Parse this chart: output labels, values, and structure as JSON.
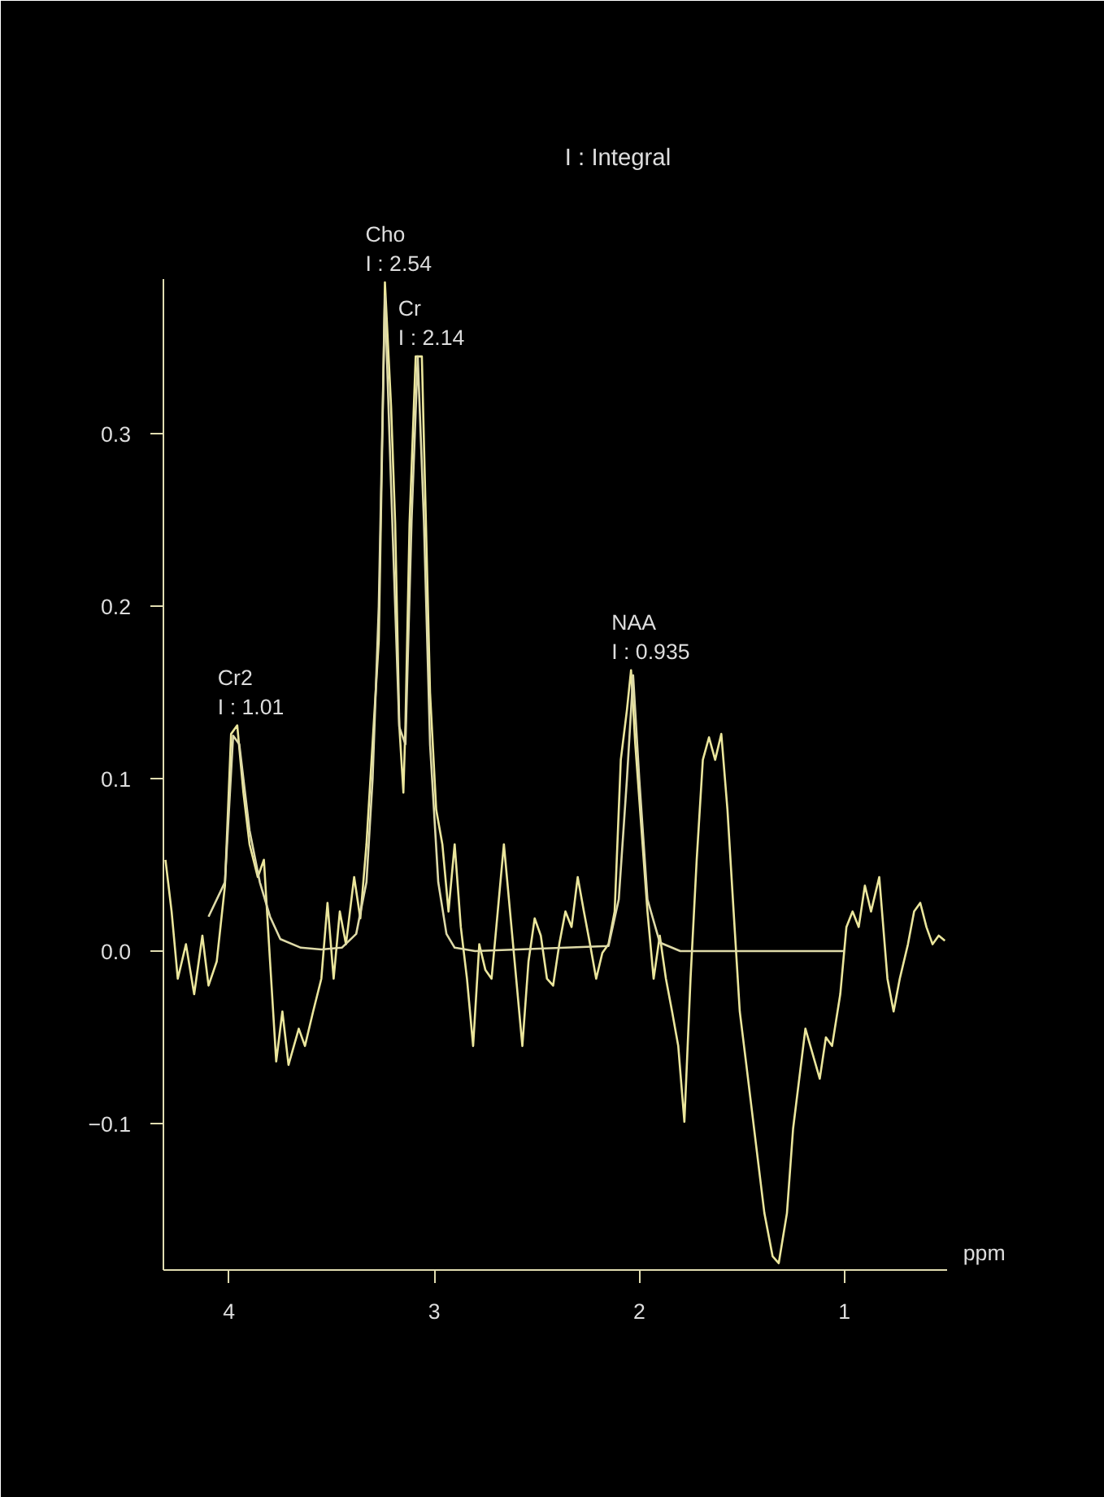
{
  "chart_data": {
    "type": "line",
    "title": "I : Integral",
    "xlabel": "ppm",
    "xlim": [
      4.32,
      0.5
    ],
    "xticks": [
      4,
      3,
      2,
      1
    ],
    "ylim": [
      -0.185,
      0.39
    ],
    "yticks": [
      -0.1,
      {
        "value": 0,
        "label": "0.0"
      },
      0.1,
      0.2,
      0.3
    ],
    "grid": false,
    "marker": "none",
    "line_style": "solid",
    "series": [
      {
        "color": "#ebe69c",
        "x": [
          4.31,
          4.28,
          4.25,
          4.21,
          4.17,
          4.13,
          4.1,
          4.06,
          4.02,
          3.99,
          3.96,
          3.93,
          3.9,
          3.86,
          3.83,
          3.8,
          3.77,
          3.74,
          3.71,
          3.66,
          3.63,
          3.59,
          3.55,
          3.52,
          3.49,
          3.46,
          3.43,
          3.39,
          3.36,
          3.33,
          3.3,
          3.27,
          3.25,
          3.24,
          3.21,
          3.19,
          3.17,
          3.15,
          3.14,
          3.12,
          3.09,
          3.06,
          3.04,
          3.02,
          2.99,
          2.96,
          2.93,
          2.9,
          2.87,
          2.84,
          2.81,
          2.78,
          2.75,
          2.72,
          2.69,
          2.66,
          2.63,
          2.6,
          2.57,
          2.54,
          2.51,
          2.48,
          2.45,
          2.42,
          2.39,
          2.36,
          2.33,
          2.3,
          2.27,
          2.24,
          2.21,
          2.18,
          2.15,
          2.12,
          2.09,
          2.06,
          2.04,
          2.02,
          1.99,
          1.96,
          1.93,
          1.9,
          1.87,
          1.84,
          1.81,
          1.78,
          1.75,
          1.72,
          1.69,
          1.66,
          1.63,
          1.6,
          1.57,
          1.54,
          1.51,
          1.48,
          1.43,
          1.39,
          1.35,
          1.32,
          1.28,
          1.25,
          1.22,
          1.19,
          1.12,
          1.09,
          1.06,
          1.02,
          0.99,
          0.96,
          0.93,
          0.9,
          0.87,
          0.83,
          0.79,
          0.76,
          0.73,
          0.69,
          0.66,
          0.63,
          0.6,
          0.57,
          0.54,
          0.51
        ],
        "values": [
          0.053,
          0.023,
          -0.016,
          0.004,
          -0.025,
          0.009,
          -0.02,
          -0.006,
          0.038,
          0.126,
          0.131,
          0.092,
          0.062,
          0.043,
          0.053,
          -0.006,
          -0.064,
          -0.035,
          -0.066,
          -0.045,
          -0.055,
          -0.035,
          -0.016,
          0.028,
          -0.016,
          0.023,
          0.004,
          0.043,
          0.019,
          0.062,
          0.121,
          0.18,
          0.316,
          0.388,
          0.316,
          0.248,
          0.131,
          0.092,
          0.131,
          0.248,
          0.345,
          0.345,
          0.248,
          0.15,
          0.082,
          0.062,
          0.023,
          0.062,
          0.014,
          -0.016,
          -0.055,
          0.004,
          -0.011,
          -0.016,
          0.023,
          0.062,
          0.023,
          -0.016,
          -0.055,
          -0.006,
          0.019,
          0.009,
          -0.016,
          -0.02,
          0.004,
          0.023,
          0.014,
          0.043,
          0.023,
          0.004,
          -0.016,
          -0.001,
          0.004,
          0.023,
          0.111,
          0.14,
          0.163,
          0.121,
          0.072,
          0.023,
          -0.016,
          0.009,
          -0.016,
          -0.035,
          -0.055,
          -0.099,
          -0.016,
          0.053,
          0.111,
          0.124,
          0.111,
          0.126,
          0.082,
          0.023,
          -0.035,
          -0.064,
          -0.113,
          -0.152,
          -0.177,
          -0.181,
          -0.152,
          -0.103,
          -0.074,
          -0.045,
          -0.074,
          -0.05,
          -0.055,
          -0.025,
          0.014,
          0.023,
          0.014,
          0.038,
          0.023,
          0.043,
          -0.016,
          -0.035,
          -0.016,
          0.004,
          0.023,
          0.028,
          0.014,
          0.004,
          0.009,
          0.006
        ]
      },
      {
        "color": "#dedaa8",
        "x": [
          4.1,
          4.02,
          3.98,
          3.95,
          3.9,
          3.85,
          3.8,
          3.75,
          3.65,
          3.55,
          3.45,
          3.38,
          3.33,
          3.3,
          3.27,
          3.24,
          3.21,
          3.17,
          3.14,
          3.11,
          3.08,
          3.05,
          3.02,
          2.98,
          2.94,
          2.9,
          2.8,
          2.15,
          2.1,
          2.06,
          2.03,
          2.0,
          1.96,
          1.9,
          1.8,
          1.0
        ],
        "values": [
          0.02,
          0.04,
          0.125,
          0.12,
          0.07,
          0.04,
          0.02,
          0.007,
          0.002,
          0.001,
          0.002,
          0.01,
          0.04,
          0.1,
          0.2,
          0.38,
          0.27,
          0.13,
          0.12,
          0.25,
          0.345,
          0.25,
          0.12,
          0.04,
          0.01,
          0.002,
          0.0,
          0.003,
          0.03,
          0.1,
          0.16,
          0.1,
          0.03,
          0.005,
          0.0,
          0.0
        ]
      }
    ],
    "annotations": [
      {
        "text": "Cr2\nI : 1.01",
        "x": 3.96,
        "y": 0.131
      },
      {
        "text": "Cho\nI : 2.54",
        "x": 3.24,
        "y": 0.388
      },
      {
        "text": "Cr\nI : 2.14",
        "x": 3.08,
        "y": 0.345
      },
      {
        "text": "NAA\nI : 0.935",
        "x": 2.04,
        "y": 0.163
      }
    ]
  }
}
